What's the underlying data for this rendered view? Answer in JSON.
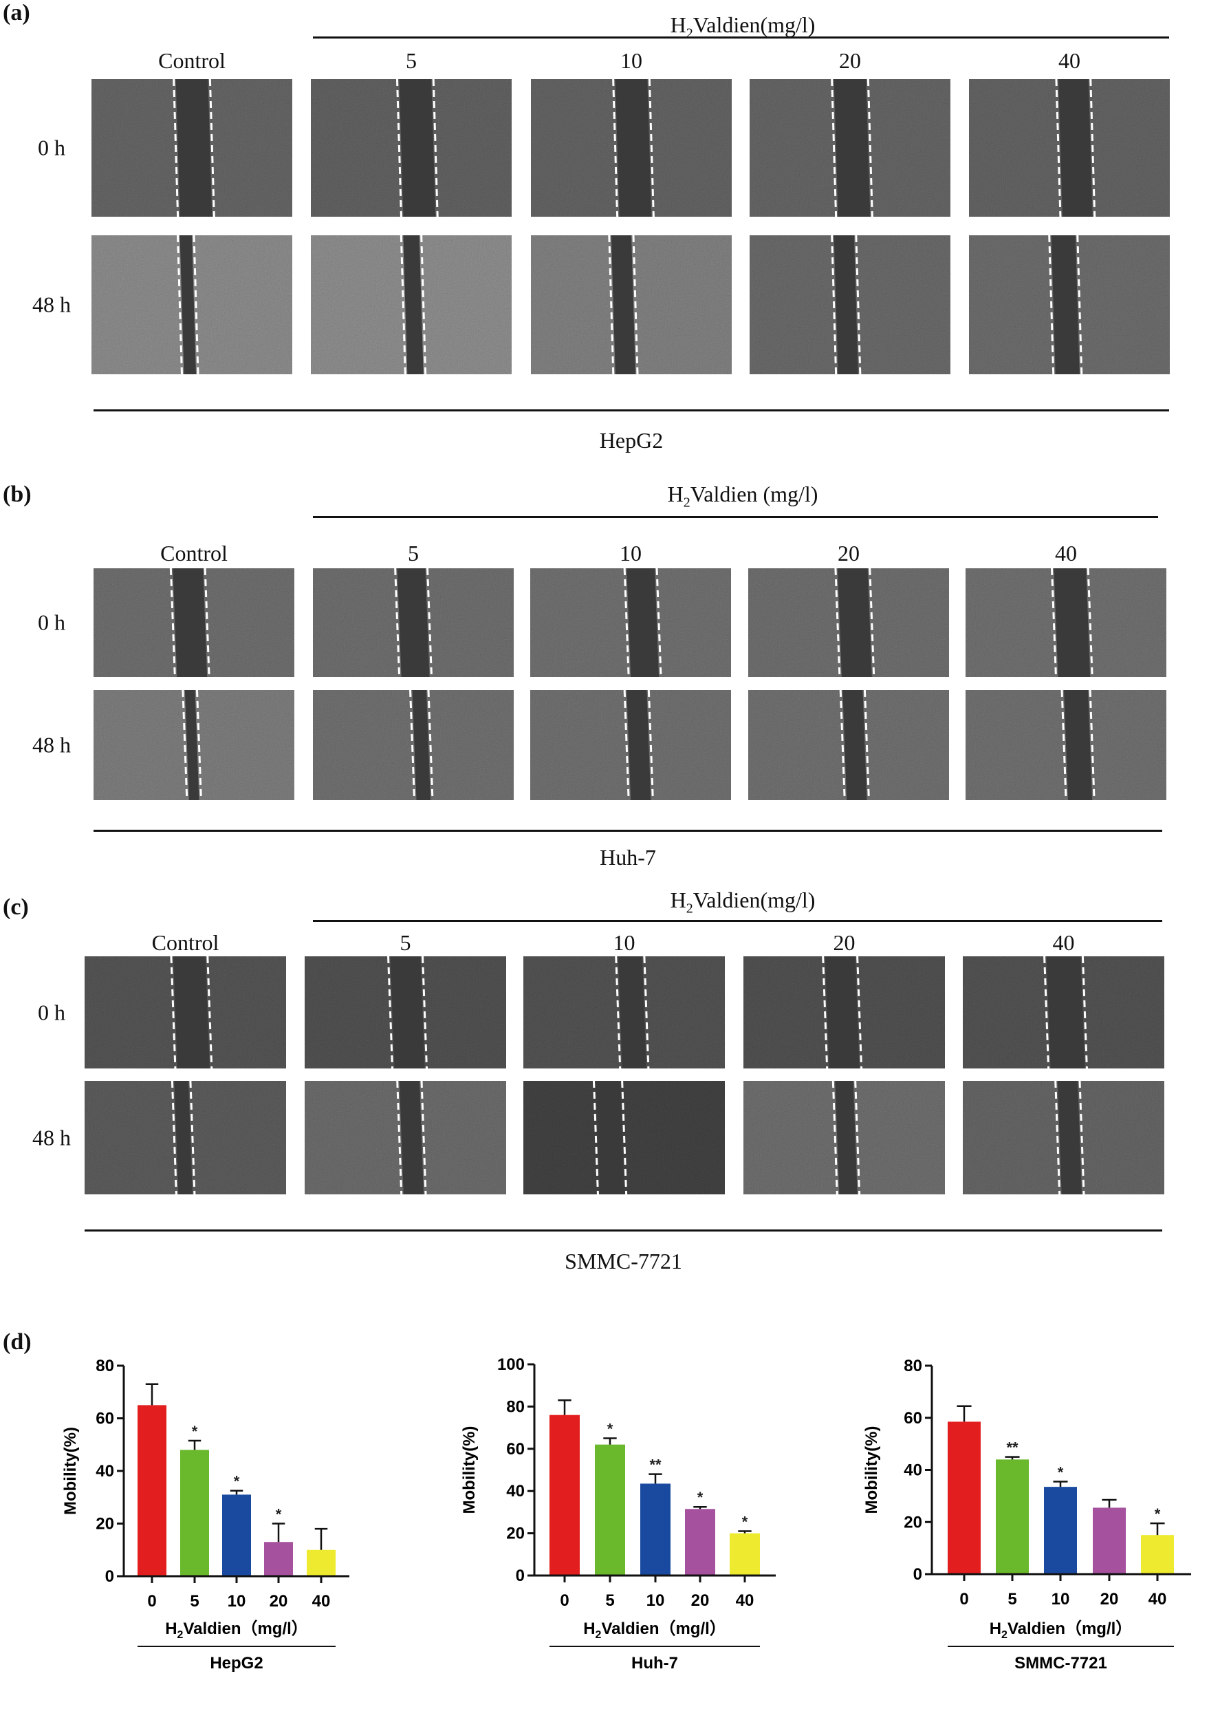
{
  "panels": [
    {
      "label": "(a)",
      "treatment_prefix": "H",
      "treatment_sub": "2",
      "treatment_rest": "Valdien(mg/l)",
      "columns": [
        "Control",
        "5",
        "10",
        "20",
        "40"
      ],
      "rows": [
        "0 h",
        "48 h"
      ],
      "cell_line": "HepG2"
    },
    {
      "label": "(b)",
      "treatment_prefix": "H",
      "treatment_sub": "2",
      "treatment_rest": "Valdien (mg/l)",
      "columns": [
        "Control",
        "5",
        "10",
        "20",
        "40"
      ],
      "rows": [
        "0 h",
        "48 h"
      ],
      "cell_line": "Huh-7"
    },
    {
      "label": "(c)",
      "treatment_prefix": "H",
      "treatment_sub": "2",
      "treatment_rest": "Valdien(mg/l)",
      "columns": [
        "Control",
        "5",
        "10",
        "20",
        "40"
      ],
      "rows": [
        "0 h",
        "48 h"
      ],
      "cell_line": "SMMC-7721"
    }
  ],
  "panel_d_label": "(d)",
  "chart_data": [
    {
      "type": "bar",
      "cell_line": "HepG2",
      "ylabel": "Mobility(%)",
      "xlabel_prefix": "H",
      "xlabel_sub": "2",
      "xlabel_rest": "Valdien（mg/l）",
      "categories": [
        "0",
        "5",
        "10",
        "20",
        "40"
      ],
      "values": [
        65,
        48,
        31,
        13,
        10
      ],
      "errors": [
        8,
        3.5,
        1.5,
        7,
        8
      ],
      "significance": [
        "",
        "*",
        "*",
        "*",
        ""
      ],
      "ylim": [
        0,
        80
      ],
      "yticks": [
        "0",
        "20",
        "40",
        "60",
        "80"
      ],
      "colors": [
        "#e31e1e",
        "#6ab82c",
        "#1a4aa0",
        "#a5519e",
        "#eeea30"
      ]
    },
    {
      "type": "bar",
      "cell_line": "Huh-7",
      "ylabel": "Mobility(%)",
      "xlabel_prefix": "H",
      "xlabel_sub": "2",
      "xlabel_rest": "Valdien（mg/l）",
      "categories": [
        "0",
        "5",
        "10",
        "20",
        "40"
      ],
      "values": [
        76,
        62,
        43.5,
        31.5,
        20
      ],
      "errors": [
        7,
        3,
        4.5,
        1,
        1
      ],
      "significance": [
        "",
        "*",
        "**",
        "*",
        "*"
      ],
      "ylim": [
        0,
        100
      ],
      "yticks": [
        "0",
        "20",
        "40",
        "60",
        "80",
        "100"
      ],
      "colors": [
        "#e31e1e",
        "#6ab82c",
        "#1a4aa0",
        "#a5519e",
        "#eeea30"
      ]
    },
    {
      "type": "bar",
      "cell_line": "SMMC-7721",
      "ylabel": "Mobility(%)",
      "xlabel_prefix": "H",
      "xlabel_sub": "2",
      "xlabel_rest": "Valdien（mg/l）",
      "categories": [
        "0",
        "5",
        "10",
        "20",
        "40"
      ],
      "values": [
        58.5,
        44,
        33.5,
        25.5,
        15
      ],
      "errors": [
        6,
        1,
        2,
        3,
        4.5
      ],
      "significance": [
        "",
        "**",
        "*",
        "",
        "*"
      ],
      "ylim": [
        0,
        80
      ],
      "yticks": [
        "0",
        "20",
        "40",
        "60",
        "80"
      ],
      "colors": [
        "#e31e1e",
        "#6ab82c",
        "#1a4aa0",
        "#a5519e",
        "#eeea30"
      ]
    }
  ]
}
